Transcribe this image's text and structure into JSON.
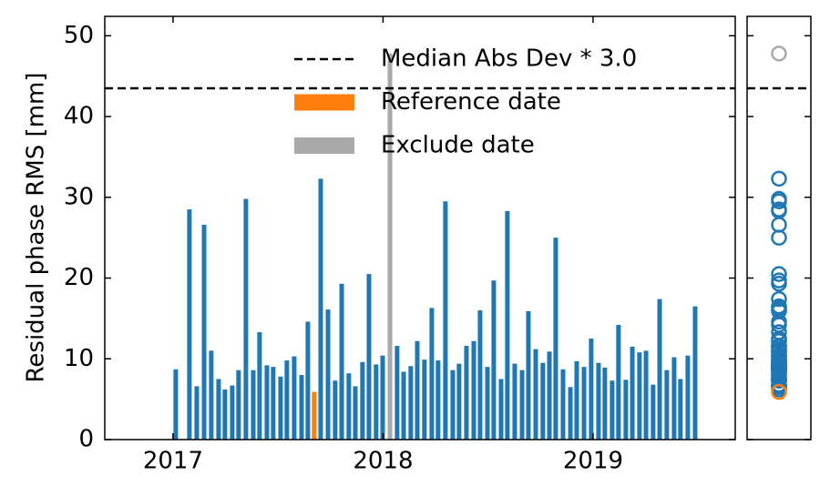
{
  "chart_data": {
    "type": "bar",
    "y_label": "Residual phase RMS [mm]",
    "xlim": [
      2016.675,
      2019.677
    ],
    "xticks": [
      2017,
      2018,
      2019
    ],
    "ylim": [
      0,
      52.4
    ],
    "yticks": [
      0,
      10,
      20,
      30,
      40,
      50
    ],
    "legend": "upper right",
    "series": [
      {
        "color": "#1f77b4",
        "x": [
          2017.013,
          2017.078,
          2017.113,
          2017.148,
          2017.182,
          2017.217,
          2017.247,
          2017.282,
          2017.312,
          2017.347,
          2017.382,
          2017.412,
          2017.447,
          2017.477,
          2017.512,
          2017.542,
          2017.577,
          2017.612,
          2017.642,
          2017.703,
          2017.738,
          2017.772,
          2017.803,
          2017.837,
          2017.868,
          2017.902,
          2017.933,
          2017.967,
          2017.998,
          2018.067,
          2018.098,
          2018.132,
          2018.163,
          2018.197,
          2018.232,
          2018.262,
          2018.297,
          2018.332,
          2018.362,
          2018.397,
          2018.432,
          2018.462,
          2018.497,
          2018.527,
          2018.562,
          2018.592,
          2018.627,
          2018.662,
          2018.692,
          2018.727,
          2018.761,
          2018.792,
          2018.822,
          2018.857,
          2018.892,
          2018.922,
          2018.957,
          2018.991,
          2019.026,
          2019.056,
          2019.091,
          2019.121,
          2019.156,
          2019.187,
          2019.221,
          2019.252,
          2019.286,
          2019.317,
          2019.351,
          2019.386,
          2019.416,
          2019.451,
          2019.486
        ],
        "values": [
          8.7,
          28.5,
          6.6,
          26.6,
          11.0,
          7.5,
          6.2,
          6.7,
          8.6,
          29.8,
          8.6,
          13.3,
          9.2,
          9.0,
          7.8,
          9.8,
          10.3,
          8.0,
          14.6,
          32.3,
          16.1,
          7.3,
          19.3,
          8.2,
          6.6,
          9.6,
          20.5,
          9.3,
          10.4,
          11.6,
          8.4,
          9.1,
          12.2,
          9.9,
          16.3,
          9.8,
          29.5,
          8.6,
          9.4,
          11.6,
          12.2,
          16.0,
          9.0,
          19.7,
          7.5,
          28.3,
          9.4,
          8.6,
          15.9,
          11.2,
          9.5,
          10.9,
          25.0,
          8.7,
          6.5,
          9.7,
          9.0,
          12.5,
          9.5,
          8.9,
          7.3,
          14.2,
          7.4,
          11.5,
          10.8,
          11.0,
          6.8,
          17.4,
          8.6,
          10.2,
          7.5,
          10.4,
          16.5
        ]
      },
      {
        "name": "Reference date",
        "color": "#ff7f0e",
        "x": [
          2017.672
        ],
        "values": [
          5.9
        ]
      },
      {
        "name": "Exclude date",
        "color": "#a9a9a9",
        "x": [
          2018.033
        ],
        "values": [
          47.8
        ]
      }
    ],
    "threshold": {
      "name": "Median Abs Dev * 3.0",
      "color": "#000000",
      "value": 43.5,
      "dashed": true
    }
  }
}
